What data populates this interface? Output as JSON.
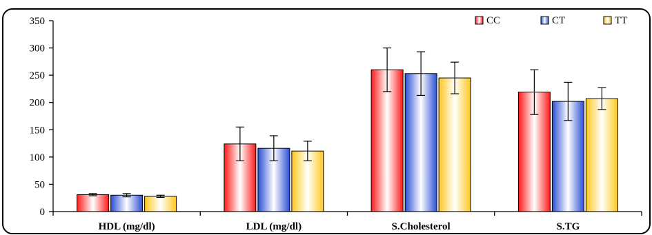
{
  "chart_data": {
    "type": "bar",
    "categories": [
      "HDL (mg/dl)",
      "LDL (mg/dl)",
      "S.Cholesterol",
      "S.TG"
    ],
    "series": [
      {
        "name": "CC",
        "values": [
          31,
          124,
          260,
          219
        ],
        "errors": [
          2,
          31,
          40,
          41
        ],
        "color": "#ff1a1a"
      },
      {
        "name": "CT",
        "values": [
          30,
          116,
          253,
          202
        ],
        "errors": [
          3,
          23,
          40,
          35
        ],
        "color": "#2a4fd4"
      },
      {
        "name": "TT",
        "values": [
          28,
          111,
          245,
          207
        ],
        "errors": [
          2,
          18,
          29,
          20
        ],
        "color": "#ffc81e"
      }
    ],
    "ylim": [
      0,
      350
    ],
    "yticks": [
      "0",
      "50",
      "100",
      "150",
      "200",
      "250",
      "300",
      "350"
    ],
    "title": "",
    "xlabel": "",
    "ylabel": "",
    "legend_position": "top-right",
    "grid": false,
    "error_bars": true
  }
}
